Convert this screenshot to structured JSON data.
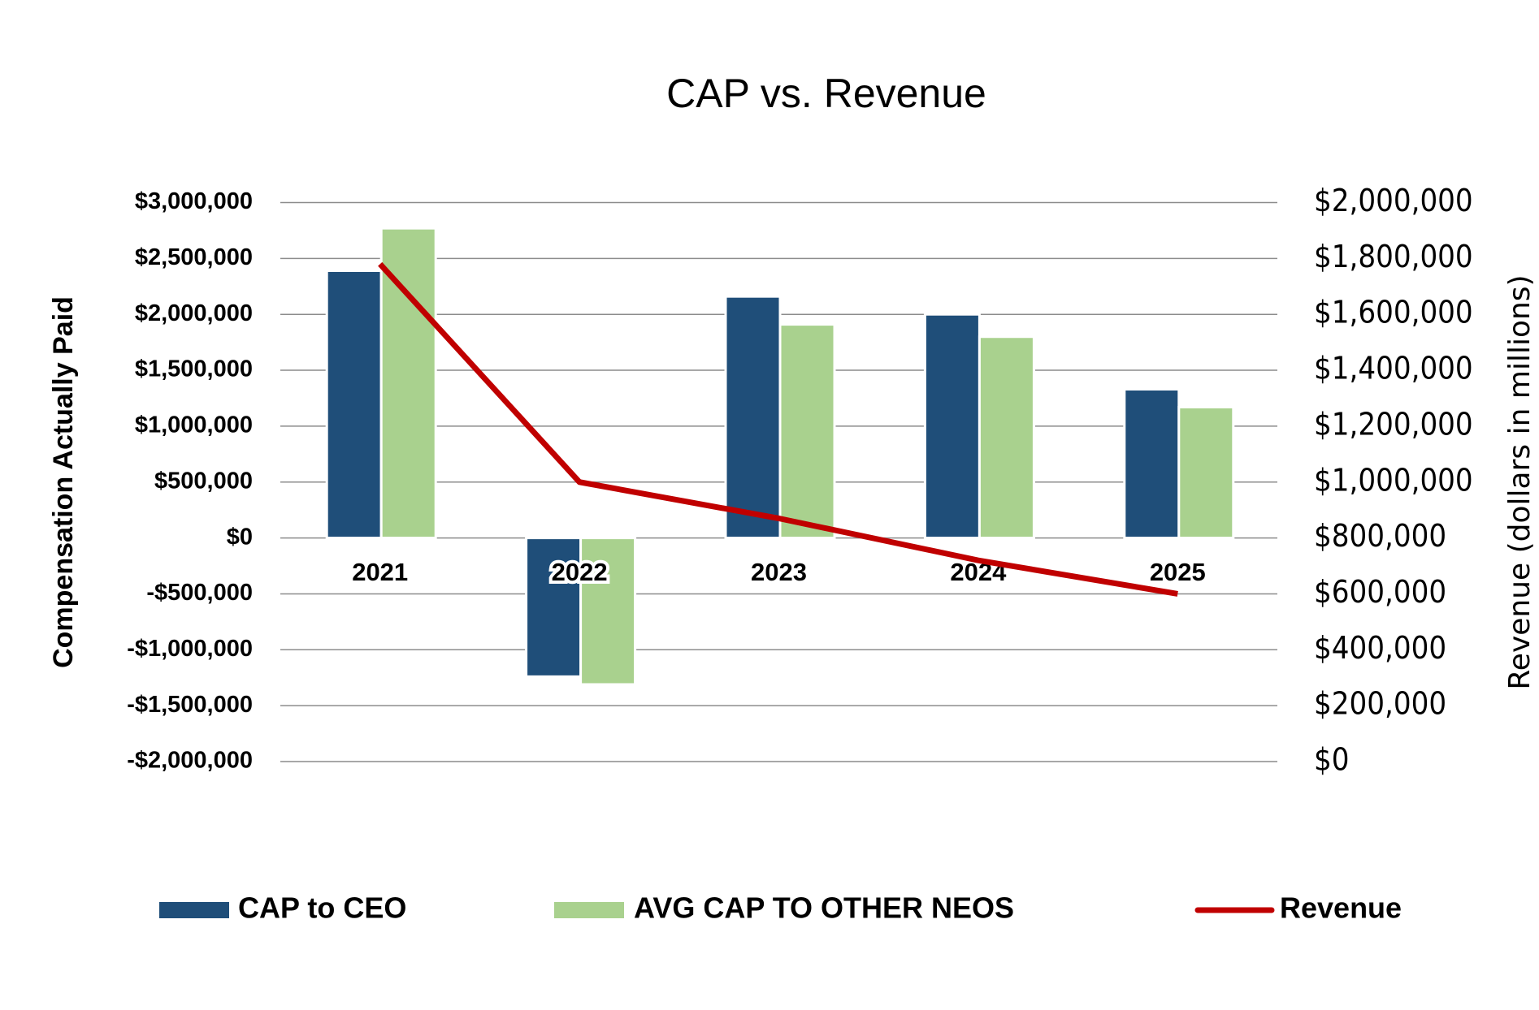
{
  "chart_data": {
    "type": "bar",
    "title": "CAP vs. Revenue",
    "y_label": "Compensation Actually Paid",
    "y2_label": "Revenue (dollars in millions)",
    "categories": [
      "2021",
      "2022",
      "2023",
      "2024",
      "2025"
    ],
    "series": [
      {
        "name": "CAP to CEO",
        "color": "#1f4e79",
        "values": [
          2390000,
          -1240000,
          2160000,
          2000000,
          1330000
        ]
      },
      {
        "name": "AVG CAP TO OTHER NEOS",
        "color": "#a9d18e",
        "values": [
          2770000,
          -1310000,
          1910000,
          1800000,
          1170000
        ]
      },
      {
        "name": "Revenue",
        "type": "line",
        "axis": "y2",
        "color": "#c00000",
        "values": [
          1780000,
          1000000,
          870000,
          720000,
          600000
        ]
      }
    ],
    "ylim": [
      -2000000,
      3000000
    ],
    "yticks": [
      {
        "value": -2000000,
        "label": "-$2,000,000"
      },
      {
        "value": -1500000,
        "label": "-$1,500,000"
      },
      {
        "value": -1000000,
        "label": "-$1,000,000"
      },
      {
        "value": -500000,
        "label": "-$500,000"
      },
      {
        "value": 0,
        "label": "$0"
      },
      {
        "value": 500000,
        "label": "$500,000"
      },
      {
        "value": 1000000,
        "label": "$1,000,000"
      },
      {
        "value": 1500000,
        "label": "$1,500,000"
      },
      {
        "value": 2000000,
        "label": "$2,000,000"
      },
      {
        "value": 2500000,
        "label": "$2,500,000"
      },
      {
        "value": 3000000,
        "label": "$3,000,000"
      }
    ],
    "y2lim": [
      0,
      2000000
    ],
    "y2ticks": [
      {
        "value": 0,
        "label": "$0"
      },
      {
        "value": 200000,
        "label": "$200,000"
      },
      {
        "value": 400000,
        "label": "$400,000"
      },
      {
        "value": 600000,
        "label": "$600,000"
      },
      {
        "value": 800000,
        "label": "$800,000"
      },
      {
        "value": 1000000,
        "label": "$1,000,000"
      },
      {
        "value": 1200000,
        "label": "$1,200,000"
      },
      {
        "value": 1400000,
        "label": "$1,400,000"
      },
      {
        "value": 1600000,
        "label": "$1,600,000"
      },
      {
        "value": 1800000,
        "label": "$1,800,000"
      },
      {
        "value": 2000000,
        "label": "$2,000,000"
      }
    ],
    "grid": true,
    "legend": "bottom"
  }
}
